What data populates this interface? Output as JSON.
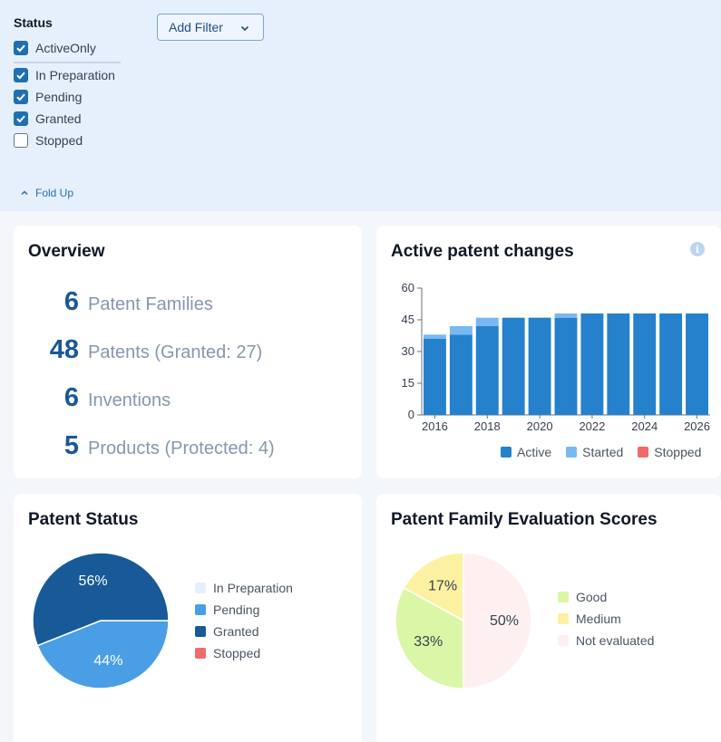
{
  "filters": {
    "status_title": "Status",
    "options": [
      {
        "label": "ActiveOnly",
        "checked": true
      },
      {
        "label": "In Preparation",
        "checked": true
      },
      {
        "label": "Pending",
        "checked": true
      },
      {
        "label": "Granted",
        "checked": true
      },
      {
        "label": "Stopped",
        "checked": false
      }
    ],
    "add_filter_label": "Add Filter",
    "fold_up_label": "Fold Up"
  },
  "overview": {
    "title": "Overview",
    "rows": [
      {
        "value": "6",
        "label": "Patent Families"
      },
      {
        "value": "48",
        "label": "Patents (Granted: 27)"
      },
      {
        "value": "6",
        "label": "Inventions"
      },
      {
        "value": "5",
        "label": "Products (Protected: 4)"
      }
    ]
  },
  "active_changes": {
    "title": "Active patent changes",
    "info_icon": "info-icon",
    "legend": [
      {
        "label": "Active",
        "color": "#2581cc"
      },
      {
        "label": "Started",
        "color": "#79b8f0"
      },
      {
        "label": "Stopped",
        "color": "#ef6b6b"
      }
    ]
  },
  "patent_status": {
    "title": "Patent Status",
    "legend": [
      {
        "label": "In Preparation",
        "color": "#e3f0fb"
      },
      {
        "label": "Pending",
        "color": "#4a9ee6"
      },
      {
        "label": "Granted",
        "color": "#175a97"
      },
      {
        "label": "Stopped",
        "color": "#ef6b6b"
      }
    ]
  },
  "evaluation": {
    "title": "Patent Family Evaluation Scores",
    "legend": [
      {
        "label": "Good",
        "color": "#d9f7a6"
      },
      {
        "label": "Medium",
        "color": "#fcf1a0"
      },
      {
        "label": "Not evaluated",
        "color": "#fef0f0"
      }
    ]
  },
  "chart_data": [
    {
      "type": "bar",
      "title": "Active patent changes",
      "x": [
        2016,
        2017,
        2018,
        2019,
        2020,
        2021,
        2022,
        2023,
        2024,
        2025,
        2026
      ],
      "x_tick_labels": [
        "2016",
        "2018",
        "2020",
        "2022",
        "2024",
        "2026"
      ],
      "y_tick_labels": [
        "0",
        "15",
        "30",
        "45",
        "60"
      ],
      "ylim": [
        0,
        60
      ],
      "stacked": true,
      "series": [
        {
          "name": "Active",
          "values": [
            36,
            38,
            42,
            46,
            46,
            46,
            48,
            48,
            48,
            48,
            48
          ]
        },
        {
          "name": "Started",
          "values": [
            2,
            4,
            4,
            0,
            0,
            2,
            0,
            0,
            0,
            0,
            0
          ]
        },
        {
          "name": "Stopped",
          "values": [
            0,
            0,
            0,
            0,
            0,
            0,
            0,
            0,
            0,
            0,
            0
          ]
        }
      ]
    },
    {
      "type": "pie",
      "title": "Patent Status",
      "slices": [
        {
          "label": "In Preparation",
          "value": 0,
          "text": ""
        },
        {
          "label": "Pending",
          "value": 44,
          "text": "44%"
        },
        {
          "label": "Granted",
          "value": 56,
          "text": "56%"
        },
        {
          "label": "Stopped",
          "value": 0,
          "text": ""
        }
      ]
    },
    {
      "type": "pie",
      "title": "Patent Family Evaluation Scores",
      "slices": [
        {
          "label": "Good",
          "value": 33,
          "text": "33%"
        },
        {
          "label": "Medium",
          "value": 17,
          "text": "17%"
        },
        {
          "label": "Not evaluated",
          "value": 50,
          "text": "50%"
        }
      ]
    }
  ]
}
